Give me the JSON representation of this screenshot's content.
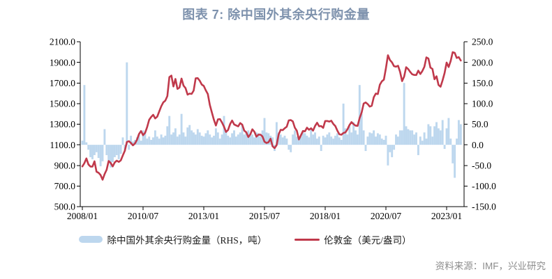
{
  "page": {
    "title": "图表 7: 除中国外其余央行购金量",
    "source": "资料来源：IMF，兴业研究"
  },
  "legend": {
    "bars_label": "除中国外其余央行购金量（RHS，吨）",
    "line_label": "伦敦金（美元/盎司）"
  },
  "colors": {
    "bars": "#BDD7EE",
    "line": "#C0394B",
    "title": "#7E92AD",
    "axis": "#000000",
    "source_text": "#8C8C8C"
  },
  "chart_data": {
    "type": "bar+line combo",
    "frequency": "monthly",
    "x_start": "2008/01",
    "x_end": "2023/08",
    "x_tick_labels": [
      "2008/01",
      "2010/07",
      "2013/01",
      "2015/07",
      "2018/01",
      "2020/07",
      "2023/01"
    ],
    "x_tick_month_indices": [
      0,
      30,
      60,
      90,
      120,
      150,
      180
    ],
    "left_axis": {
      "ylim": [
        500,
        2100
      ],
      "tick_labels": [
        "2100.0",
        "1900.0",
        "1700.0",
        "1500.0",
        "1300.0",
        "1100.0",
        "900.0",
        "700.0",
        "500.0"
      ]
    },
    "right_axis": {
      "ylim": [
        -150,
        250
      ],
      "tick_labels": [
        "250.0",
        "200.0",
        "150.0",
        "100.0",
        "50.0",
        "0.0",
        "-50.0",
        "-100.0",
        "-150.0"
      ]
    },
    "legend_position": "bottom",
    "grid": false,
    "series": [
      {
        "name": "除中国外其余央行购金量（RHS，吨）",
        "type": "bar",
        "axis": "right",
        "unit": "吨",
        "color": "#BDD7EE",
        "values": [
          10,
          145,
          6,
          -12,
          -30,
          -35,
          -25,
          -18,
          -32,
          -52,
          -40,
          38,
          -25,
          -38,
          -55,
          -42,
          -30,
          -25,
          -35,
          -22,
          18,
          -15,
          200,
          -12,
          22,
          8,
          12,
          18,
          25,
          10,
          35,
          28,
          15,
          20,
          12,
          18,
          35,
          20,
          15,
          25,
          18,
          22,
          45,
          70,
          25,
          30,
          40,
          20,
          25,
          75,
          30,
          20,
          42,
          48,
          35,
          30,
          25,
          38,
          30,
          22,
          20,
          28,
          35,
          25,
          18,
          22,
          40,
          30,
          15,
          25,
          70,
          30,
          22,
          18,
          28,
          35,
          20,
          25,
          30,
          50,
          25,
          30,
          35,
          22,
          25,
          18,
          30,
          28,
          20,
          35,
          65,
          30,
          28,
          22,
          18,
          -15,
          55,
          30,
          25,
          18,
          22,
          15,
          -12,
          -18,
          25,
          35,
          20,
          15,
          20,
          35,
          28,
          22,
          18,
          40,
          25,
          30,
          15,
          20,
          -15,
          22,
          18,
          25,
          30,
          20,
          15,
          22,
          28,
          18,
          12,
          100,
          40,
          25,
          45,
          30,
          55,
          35,
          25,
          145,
          75,
          35,
          -15,
          20,
          30,
          28,
          35,
          20,
          28,
          25,
          15,
          12,
          22,
          -50,
          -18,
          -30,
          -12,
          25,
          20,
          35,
          35,
          150,
          45,
          38,
          35,
          35,
          25,
          30,
          -25,
          20,
          10,
          30,
          15,
          50,
          45,
          20,
          45,
          55,
          40,
          35,
          60,
          -10,
          40,
          65,
          15,
          -45,
          -80,
          15,
          60,
          50
        ]
      },
      {
        "name": "伦敦金（美元/盎司）",
        "type": "line",
        "axis": "left",
        "unit": "美元/盎司",
        "color": "#C0394B",
        "values": [
          890,
          922,
          968,
          910,
          889,
          889,
          940,
          839,
          829,
          807,
          761,
          816,
          858,
          943,
          924,
          890,
          929,
          946,
          934,
          949,
          997,
          1043,
          1127,
          1135,
          1118,
          1095,
          1113,
          1149,
          1205,
          1233,
          1193,
          1216,
          1271,
          1342,
          1370,
          1391,
          1356,
          1373,
          1424,
          1474,
          1512,
          1529,
          1573,
          1757,
          1772,
          1666,
          1739,
          1642,
          1656,
          1743,
          1674,
          1650,
          1587,
          1597,
          1594,
          1626,
          1745,
          1747,
          1722,
          1685,
          1671,
          1628,
          1593,
          1486,
          1414,
          1343,
          1287,
          1347,
          1349,
          1316,
          1276,
          1225,
          1244,
          1301,
          1336,
          1298,
          1288,
          1279,
          1311,
          1295,
          1238,
          1222,
          1176,
          1201,
          1251,
          1227,
          1179,
          1198,
          1199,
          1181,
          1130,
          1118,
          1125,
          1159,
          1086,
          1068,
          1097,
          1200,
          1246,
          1242,
          1261,
          1276,
          1337,
          1340,
          1327,
          1266,
          1236,
          1152,
          1192,
          1234,
          1231,
          1266,
          1246,
          1260,
          1237,
          1283,
          1314,
          1280,
          1282,
          1264,
          1331,
          1331,
          1325,
          1334,
          1303,
          1282,
          1238,
          1202,
          1198,
          1215,
          1221,
          1250,
          1292,
          1320,
          1301,
          1286,
          1284,
          1359,
          1413,
          1500,
          1511,
          1495,
          1471,
          1479,
          1561,
          1597,
          1592,
          1683,
          1716,
          1732,
          1843,
          1969,
          1922,
          1900,
          1863,
          1858,
          1867,
          1808,
          1718,
          1762,
          1853,
          1835,
          1807,
          1784,
          1778,
          1777,
          1820,
          1787,
          1816,
          1856,
          1948,
          1937,
          1849,
          1836,
          1736,
          1765,
          1681,
          1664,
          1725,
          1797,
          1898,
          1855,
          1913,
          1999,
          1992,
          1943,
          1951,
          1918
        ]
      }
    ]
  }
}
